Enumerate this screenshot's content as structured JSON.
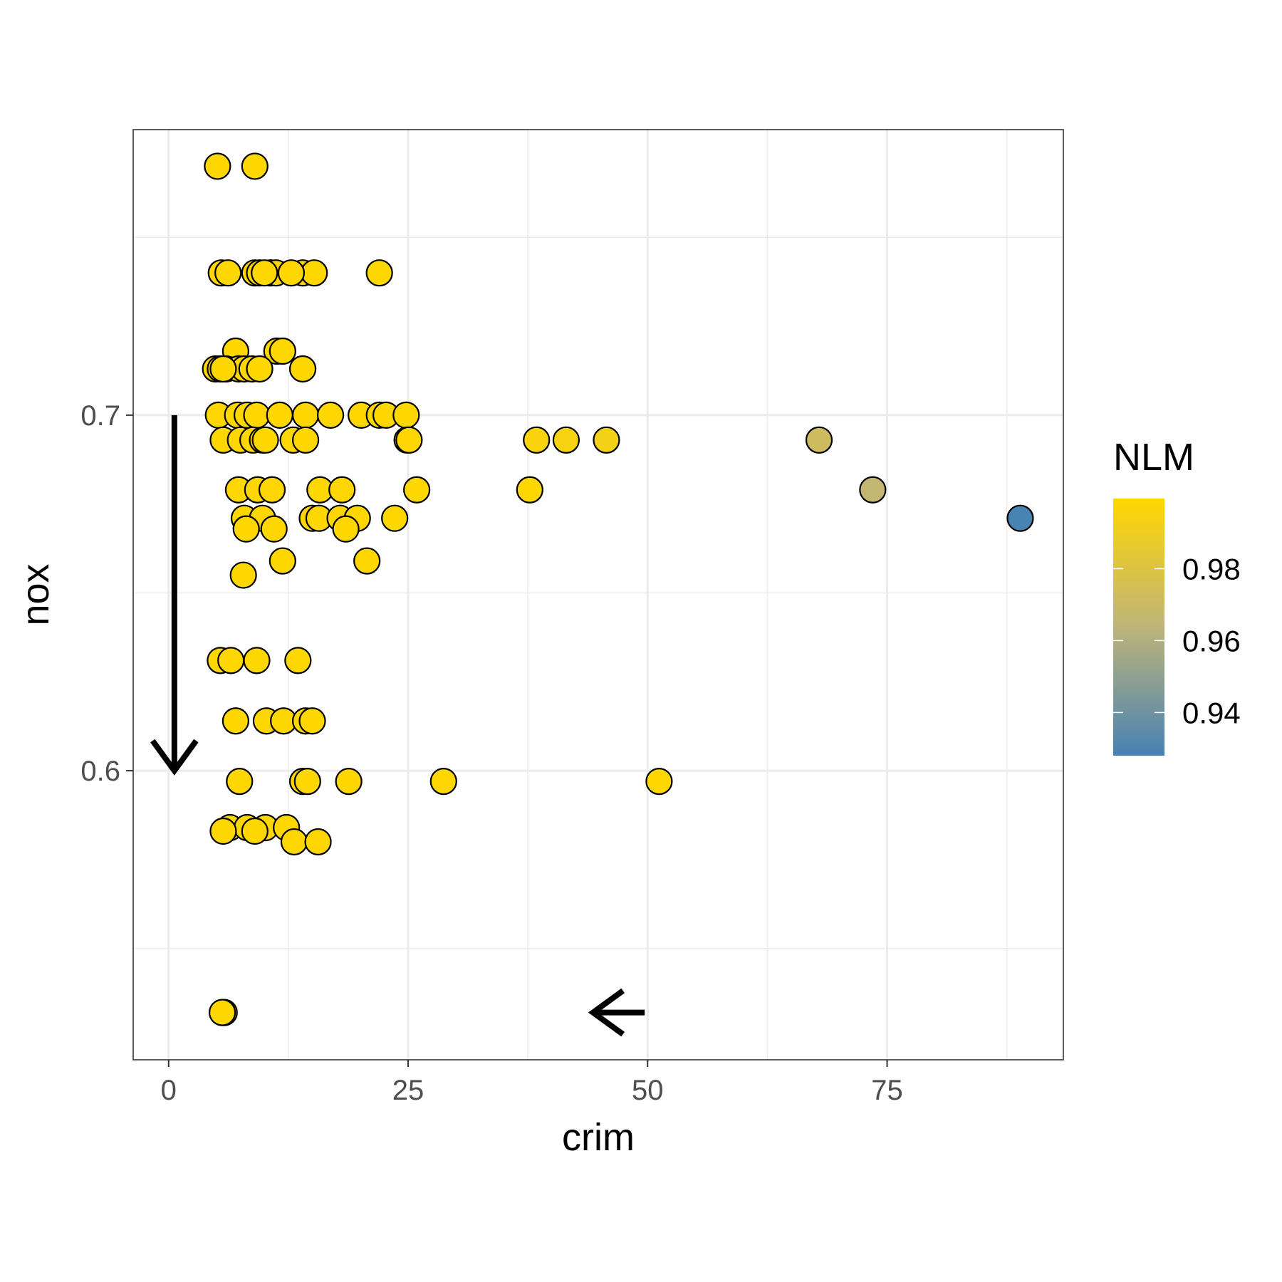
{
  "chart_data": {
    "type": "scatter",
    "title": "",
    "xlabel": "crim",
    "ylabel": "nox",
    "xlim": [
      -3.7,
      93.4
    ],
    "ylim": [
      0.5187,
      0.7803
    ],
    "x_ticks": [
      0,
      25,
      50,
      75
    ],
    "x_tick_labels": [
      "0",
      "25",
      "50",
      "75"
    ],
    "y_ticks": [
      0.6,
      0.7
    ],
    "y_tick_labels": [
      "0.6",
      "0.7"
    ],
    "x_minor_ticks": [
      12.5,
      37.5,
      62.5,
      87.5
    ],
    "y_minor_ticks": [
      0.55,
      0.65,
      0.75
    ],
    "grid": true,
    "legend": {
      "title": "NLM",
      "position": "right",
      "range": [
        0.928,
        0.9995
      ],
      "tick_values": [
        0.98,
        0.96,
        0.94
      ],
      "tick_labels": [
        "0.98",
        "0.96",
        "0.94"
      ],
      "low_color": "#4682B4",
      "mid_color": "#BEB47A",
      "high_color": "#FFD700"
    },
    "point_fill_default": "#FFD700",
    "point_stroke": "#000000",
    "annotations": [
      {
        "kind": "arrow",
        "direction": "down",
        "from": [
          0.6,
          0.7
        ],
        "to": [
          0.6,
          0.6
        ]
      },
      {
        "kind": "arrow",
        "direction": "left",
        "from": [
          49.7,
          0.532
        ],
        "to": [
          44.3,
          0.532
        ]
      }
    ],
    "points": [
      {
        "x": 5.1,
        "y": 0.77
      },
      {
        "x": 9.0,
        "y": 0.77
      },
      {
        "x": 5.5,
        "y": 0.74
      },
      {
        "x": 6.2,
        "y": 0.74
      },
      {
        "x": 9.0,
        "y": 0.74
      },
      {
        "x": 9.5,
        "y": 0.74
      },
      {
        "x": 10.6,
        "y": 0.74
      },
      {
        "x": 11.2,
        "y": 0.74
      },
      {
        "x": 14.0,
        "y": 0.74
      },
      {
        "x": 15.2,
        "y": 0.74
      },
      {
        "x": 12.8,
        "y": 0.74
      },
      {
        "x": 10.0,
        "y": 0.74
      },
      {
        "x": 22.0,
        "y": 0.74
      },
      {
        "x": 7.0,
        "y": 0.718
      },
      {
        "x": 11.3,
        "y": 0.718
      },
      {
        "x": 11.9,
        "y": 0.718
      },
      {
        "x": 4.9,
        "y": 0.713
      },
      {
        "x": 5.4,
        "y": 0.713
      },
      {
        "x": 6.0,
        "y": 0.713
      },
      {
        "x": 7.3,
        "y": 0.713
      },
      {
        "x": 7.9,
        "y": 0.713
      },
      {
        "x": 8.7,
        "y": 0.713
      },
      {
        "x": 9.5,
        "y": 0.713
      },
      {
        "x": 14.0,
        "y": 0.713
      },
      {
        "x": 5.7,
        "y": 0.713
      },
      {
        "x": 5.2,
        "y": 0.7
      },
      {
        "x": 7.2,
        "y": 0.7
      },
      {
        "x": 8.2,
        "y": 0.7
      },
      {
        "x": 9.2,
        "y": 0.7
      },
      {
        "x": 11.6,
        "y": 0.7
      },
      {
        "x": 14.3,
        "y": 0.7
      },
      {
        "x": 16.9,
        "y": 0.7
      },
      {
        "x": 20.1,
        "y": 0.7
      },
      {
        "x": 22.0,
        "y": 0.7
      },
      {
        "x": 22.7,
        "y": 0.7
      },
      {
        "x": 24.8,
        "y": 0.7
      },
      {
        "x": 5.7,
        "y": 0.693
      },
      {
        "x": 7.5,
        "y": 0.693
      },
      {
        "x": 8.8,
        "y": 0.693
      },
      {
        "x": 9.8,
        "y": 0.693
      },
      {
        "x": 10.1,
        "y": 0.693
      },
      {
        "x": 13.0,
        "y": 0.693
      },
      {
        "x": 14.3,
        "y": 0.693
      },
      {
        "x": 24.9,
        "y": 0.693
      },
      {
        "x": 25.1,
        "y": 0.693
      },
      {
        "x": 38.4,
        "y": 0.693,
        "nlm": 0.996
      },
      {
        "x": 41.5,
        "y": 0.693,
        "nlm": 0.995
      },
      {
        "x": 45.7,
        "y": 0.693,
        "nlm": 0.993
      },
      {
        "x": 67.9,
        "y": 0.693,
        "nlm": 0.972
      },
      {
        "x": 7.3,
        "y": 0.679
      },
      {
        "x": 9.3,
        "y": 0.679
      },
      {
        "x": 10.8,
        "y": 0.679
      },
      {
        "x": 15.8,
        "y": 0.679
      },
      {
        "x": 18.1,
        "y": 0.679
      },
      {
        "x": 25.9,
        "y": 0.679
      },
      {
        "x": 37.7,
        "y": 0.679
      },
      {
        "x": 73.5,
        "y": 0.679,
        "nlm": 0.966
      },
      {
        "x": 7.9,
        "y": 0.671
      },
      {
        "x": 9.8,
        "y": 0.671
      },
      {
        "x": 15.0,
        "y": 0.671
      },
      {
        "x": 15.7,
        "y": 0.671
      },
      {
        "x": 17.9,
        "y": 0.671
      },
      {
        "x": 19.7,
        "y": 0.671
      },
      {
        "x": 23.6,
        "y": 0.671
      },
      {
        "x": 88.9,
        "y": 0.671,
        "nlm": 0.929
      },
      {
        "x": 8.1,
        "y": 0.668
      },
      {
        "x": 11.0,
        "y": 0.668
      },
      {
        "x": 18.5,
        "y": 0.668
      },
      {
        "x": 11.9,
        "y": 0.659
      },
      {
        "x": 20.7,
        "y": 0.659
      },
      {
        "x": 7.8,
        "y": 0.655
      },
      {
        "x": 5.4,
        "y": 0.631
      },
      {
        "x": 6.5,
        "y": 0.631
      },
      {
        "x": 9.2,
        "y": 0.631
      },
      {
        "x": 13.5,
        "y": 0.631
      },
      {
        "x": 7.0,
        "y": 0.614
      },
      {
        "x": 10.2,
        "y": 0.614
      },
      {
        "x": 12.0,
        "y": 0.614
      },
      {
        "x": 14.3,
        "y": 0.614
      },
      {
        "x": 15.0,
        "y": 0.614
      },
      {
        "x": 7.4,
        "y": 0.597
      },
      {
        "x": 14.0,
        "y": 0.597
      },
      {
        "x": 14.5,
        "y": 0.597
      },
      {
        "x": 18.8,
        "y": 0.597
      },
      {
        "x": 28.7,
        "y": 0.597
      },
      {
        "x": 51.2,
        "y": 0.597
      },
      {
        "x": 6.4,
        "y": 0.584
      },
      {
        "x": 8.2,
        "y": 0.584
      },
      {
        "x": 10.1,
        "y": 0.584
      },
      {
        "x": 12.3,
        "y": 0.584
      },
      {
        "x": 5.7,
        "y": 0.583
      },
      {
        "x": 9.0,
        "y": 0.583
      },
      {
        "x": 13.1,
        "y": 0.58
      },
      {
        "x": 15.6,
        "y": 0.58
      },
      {
        "x": 5.8,
        "y": 0.532
      },
      {
        "x": 5.6,
        "y": 0.532
      }
    ]
  }
}
